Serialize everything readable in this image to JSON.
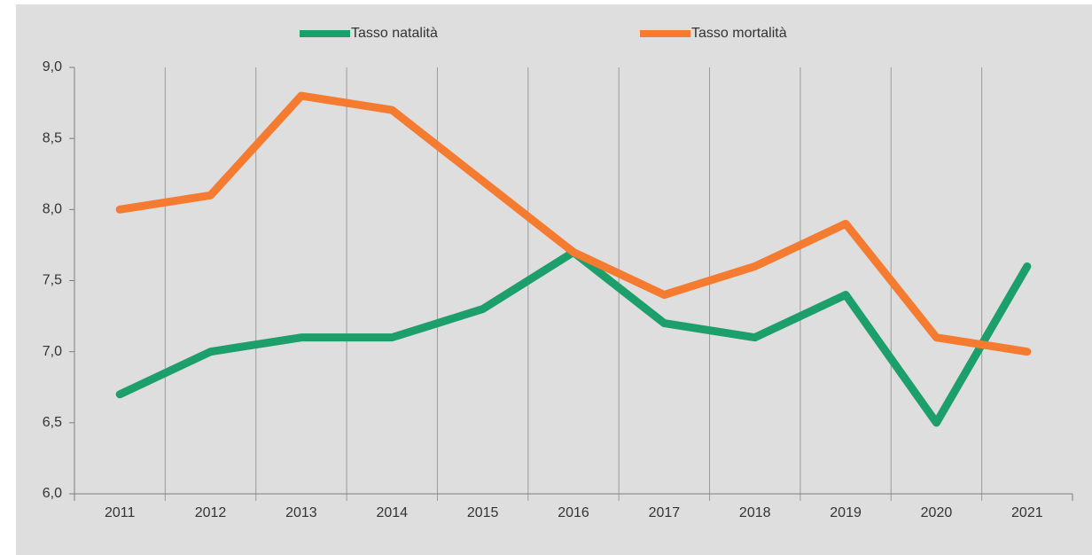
{
  "chart_data": {
    "type": "line",
    "categories": [
      "2011",
      "2012",
      "2013",
      "2014",
      "2015",
      "2016",
      "2017",
      "2018",
      "2019",
      "2020",
      "2021"
    ],
    "series": [
      {
        "name": "Tasso natalità",
        "color": "#1d9f6b",
        "values": [
          6.7,
          7.0,
          7.1,
          7.1,
          7.3,
          7.7,
          7.2,
          7.1,
          7.4,
          6.5,
          7.6
        ]
      },
      {
        "name": "Tasso mortalità",
        "color": "#f47b2f",
        "values": [
          8.0,
          8.1,
          8.8,
          8.7,
          8.2,
          7.7,
          7.4,
          7.6,
          7.9,
          7.1,
          7.0
        ]
      }
    ],
    "ylim": [
      6,
      9
    ],
    "yticks": [
      {
        "value": 6,
        "label": "6,0"
      },
      {
        "value": 6.5,
        "label": "6,5"
      },
      {
        "value": 7,
        "label": "7,0"
      },
      {
        "value": 7.5,
        "label": "7,5"
      },
      {
        "value": 8,
        "label": "8,0"
      },
      {
        "value": 8.5,
        "label": "8,5"
      },
      {
        "value": 9,
        "label": "9,0"
      }
    ],
    "legend": "top",
    "category_separators": true
  }
}
